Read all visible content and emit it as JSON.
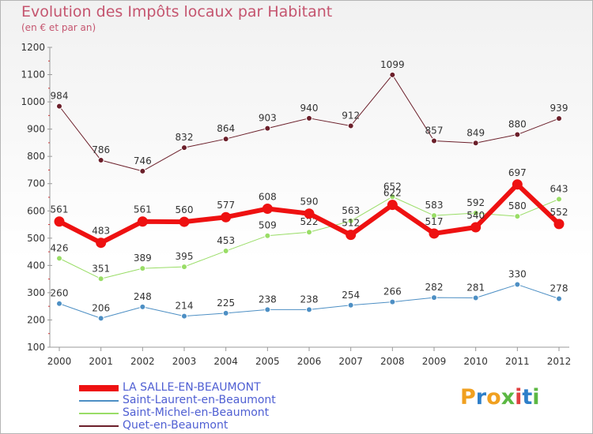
{
  "header": {
    "title": "Evolution des Impôts locaux par Habitant",
    "subtitle": "(en € et par an)"
  },
  "brand": {
    "text": "Proxiti"
  },
  "chart_data": {
    "type": "line",
    "title": "Evolution des Impôts locaux par Habitant",
    "subtitle": "(en € et par an)",
    "xlabel": "",
    "ylabel": "",
    "ylim": [
      100,
      1200
    ],
    "yticks": [
      100,
      200,
      300,
      400,
      500,
      600,
      700,
      800,
      900,
      1000,
      1100,
      1200
    ],
    "x": [
      "2000",
      "2001",
      "2002",
      "2003",
      "2004",
      "2005",
      "2006",
      "2007",
      "2008",
      "2009",
      "2010",
      "2011",
      "2012"
    ],
    "grid": false,
    "legend_position": "bottom-left",
    "series": [
      {
        "name": "Quet-en-Beaumont",
        "color": "#6b1f2a",
        "width": 1,
        "values": [
          984,
          786,
          746,
          832,
          864,
          903,
          940,
          912,
          1099,
          857,
          849,
          880,
          939
        ]
      },
      {
        "name": "Saint-Michel-en-Beaumont",
        "color": "#99dd66",
        "width": 1,
        "values": [
          426,
          351,
          389,
          395,
          453,
          509,
          522,
          563,
          652,
          583,
          592,
          580,
          643
        ]
      },
      {
        "name": "Saint-Laurent-en-Beaumont",
        "color": "#4d8fc4",
        "width": 1,
        "values": [
          260,
          206,
          248,
          214,
          225,
          238,
          238,
          254,
          266,
          282,
          281,
          330,
          278
        ]
      },
      {
        "name": "LA SALLE-EN-BEAUMONT",
        "color": "#ee1111",
        "width": 6,
        "values": [
          561,
          483,
          561,
          560,
          577,
          608,
          590,
          512,
          622,
          517,
          540,
          697,
          552
        ]
      }
    ],
    "legend_order": [
      "LA SALLE-EN-BEAUMONT",
      "Saint-Laurent-en-Beaumont",
      "Saint-Michel-en-Beaumont",
      "Quet-en-Beaumont"
    ]
  }
}
